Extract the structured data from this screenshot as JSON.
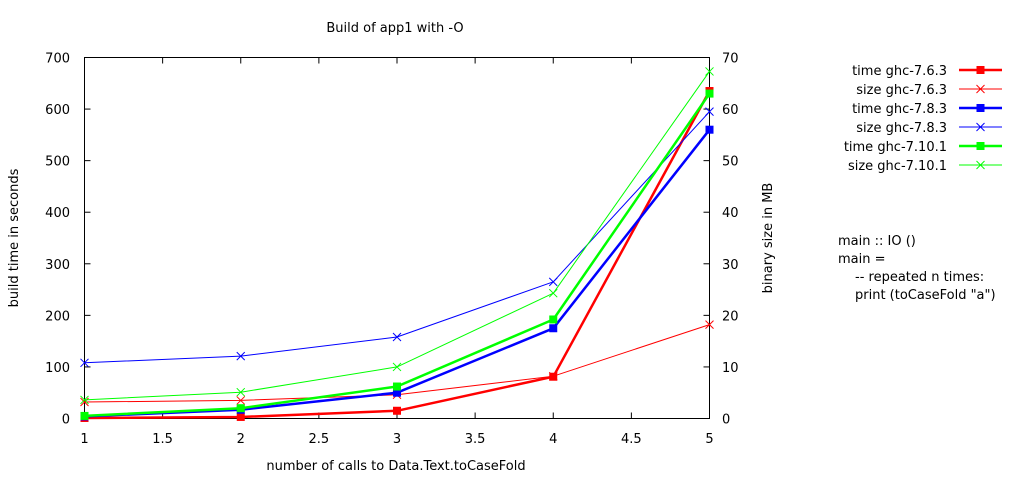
{
  "chart_data": {
    "type": "line",
    "title": "Build of app1 with -O",
    "xlabel": "number of calls to Data.Text.toCaseFold",
    "ylabel": "build time in seconds",
    "y2label": "binary size in MB",
    "xlim": [
      1,
      5
    ],
    "ylim": [
      0,
      700
    ],
    "y2lim": [
      0,
      70
    ],
    "x_ticks": [
      "1",
      "1.5",
      "2",
      "2.5",
      "3",
      "3.5",
      "4",
      "4.5",
      "5"
    ],
    "y_ticks": [
      "0",
      "100",
      "200",
      "300",
      "400",
      "500",
      "600",
      "700"
    ],
    "y2_ticks": [
      "0",
      "10",
      "20",
      "30",
      "40",
      "50",
      "60",
      "70"
    ],
    "grid": false,
    "legend_position": "right, outside plot",
    "series": [
      {
        "name": "time ghc-7.6.3",
        "axis": "y",
        "color": "#ff0000",
        "marker": "square",
        "thick": true,
        "x": [
          1,
          2,
          3,
          4,
          5
        ],
        "values": [
          1,
          3,
          15,
          81,
          635
        ]
      },
      {
        "name": "size ghc-7.6.3",
        "axis": "y2",
        "color": "#ff0000",
        "marker": "x",
        "thick": false,
        "x": [
          1,
          2,
          3,
          4,
          5
        ],
        "values": [
          3.2,
          3.5,
          4.6,
          8.2,
          18.2
        ]
      },
      {
        "name": "time ghc-7.8.3",
        "axis": "y",
        "color": "#0000ff",
        "marker": "square",
        "thick": true,
        "x": [
          1,
          2,
          3,
          4,
          5
        ],
        "values": [
          4,
          17,
          50,
          175,
          560
        ]
      },
      {
        "name": "size ghc-7.8.3",
        "axis": "y2",
        "color": "#0000ff",
        "marker": "x",
        "thick": false,
        "x": [
          1,
          2,
          3,
          4,
          5
        ],
        "values": [
          10.8,
          12.1,
          15.8,
          26.5,
          59.5
        ]
      },
      {
        "name": "time ghc-7.10.1",
        "axis": "y",
        "color": "#00ff00",
        "marker": "square",
        "thick": true,
        "x": [
          1,
          2,
          3,
          4,
          5
        ],
        "values": [
          5,
          20,
          62,
          192,
          630
        ]
      },
      {
        "name": "size ghc-7.10.1",
        "axis": "y2",
        "color": "#00ff00",
        "marker": "x",
        "thick": false,
        "x": [
          1,
          2,
          3,
          4,
          5
        ],
        "values": [
          3.6,
          5.1,
          10.0,
          24.3,
          67.3
        ]
      }
    ],
    "annotation": [
      "main :: IO ()",
      "main =",
      "-- repeated n times:",
      "print (toCaseFold \"a\")"
    ]
  }
}
